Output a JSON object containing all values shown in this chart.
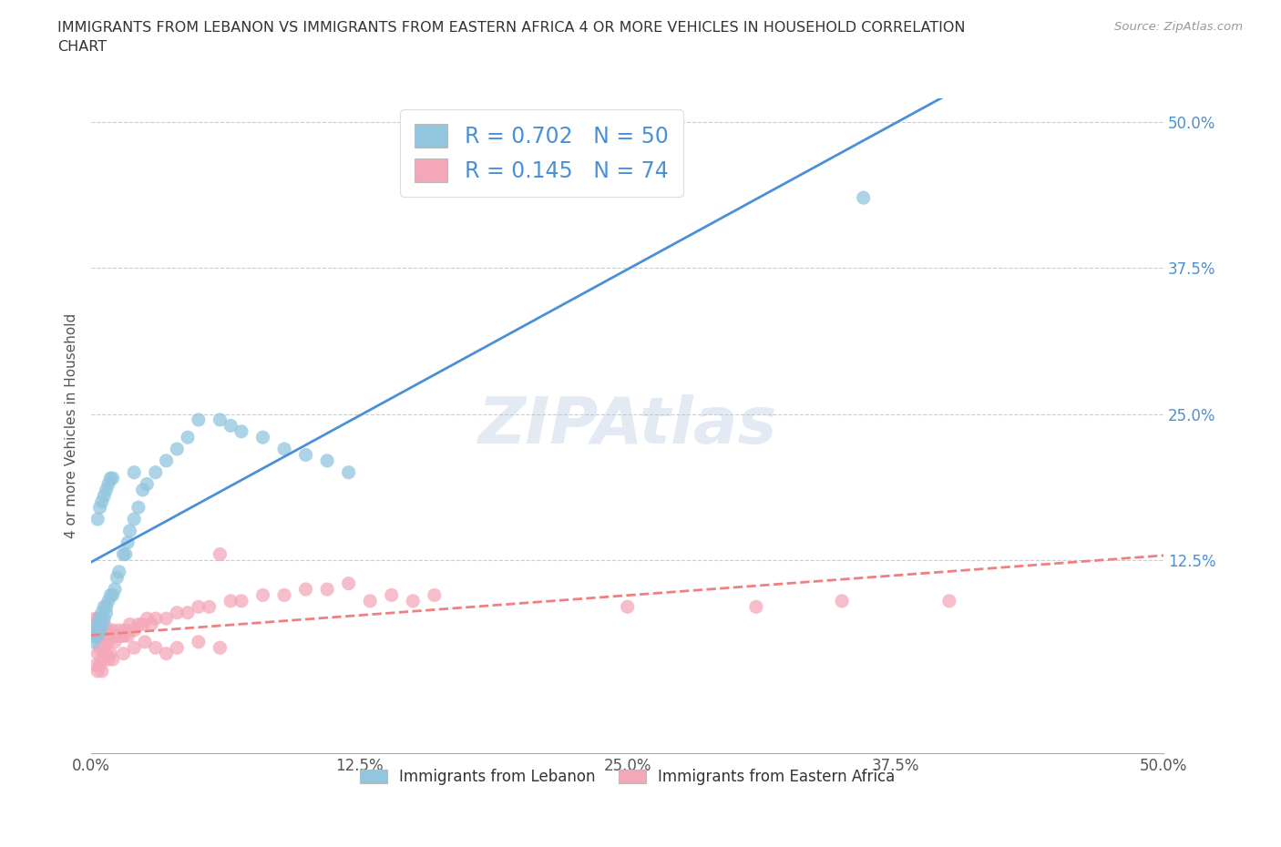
{
  "title": "IMMIGRANTS FROM LEBANON VS IMMIGRANTS FROM EASTERN AFRICA 4 OR MORE VEHICLES IN HOUSEHOLD CORRELATION\nCHART",
  "source": "Source: ZipAtlas.com",
  "ylabel": "4 or more Vehicles in Household",
  "xmin": 0.0,
  "xmax": 0.5,
  "ymin": -0.04,
  "ymax": 0.52,
  "xtick_labels": [
    "0.0%",
    "12.5%",
    "25.0%",
    "37.5%",
    "50.0%"
  ],
  "xtick_vals": [
    0.0,
    0.125,
    0.25,
    0.375,
    0.5
  ],
  "ytick_labels": [
    "12.5%",
    "25.0%",
    "37.5%",
    "50.0%"
  ],
  "ytick_vals": [
    0.125,
    0.25,
    0.375,
    0.5
  ],
  "watermark": "ZIPAtlas",
  "lebanon_color": "#92C5DE",
  "eastern_africa_color": "#F4A7B9",
  "lebanon_line_color": "#4A90D9",
  "eastern_africa_line_color": "#F08080",
  "R_lebanon": 0.702,
  "N_lebanon": 50,
  "R_eastern_africa": 0.145,
  "N_eastern_africa": 74,
  "legend_label_lebanon": "Immigrants from Lebanon",
  "legend_label_eastern_africa": "Immigrants from Eastern Africa",
  "lebanon_x": [
    0.001,
    0.002,
    0.002,
    0.003,
    0.003,
    0.004,
    0.004,
    0.005,
    0.005,
    0.006,
    0.006,
    0.007,
    0.007,
    0.008,
    0.009,
    0.01,
    0.011,
    0.012,
    0.013,
    0.015,
    0.016,
    0.017,
    0.018,
    0.02,
    0.022,
    0.024,
    0.026,
    0.03,
    0.035,
    0.04,
    0.045,
    0.05,
    0.06,
    0.065,
    0.07,
    0.08,
    0.09,
    0.1,
    0.11,
    0.12,
    0.003,
    0.004,
    0.005,
    0.006,
    0.007,
    0.008,
    0.009,
    0.01,
    0.02,
    0.36
  ],
  "lebanon_y": [
    0.055,
    0.06,
    0.065,
    0.06,
    0.07,
    0.065,
    0.075,
    0.07,
    0.08,
    0.075,
    0.085,
    0.08,
    0.085,
    0.09,
    0.095,
    0.095,
    0.1,
    0.11,
    0.115,
    0.13,
    0.13,
    0.14,
    0.15,
    0.16,
    0.17,
    0.185,
    0.19,
    0.2,
    0.21,
    0.22,
    0.23,
    0.245,
    0.245,
    0.24,
    0.235,
    0.23,
    0.22,
    0.215,
    0.21,
    0.2,
    0.16,
    0.17,
    0.175,
    0.18,
    0.185,
    0.19,
    0.195,
    0.195,
    0.2,
    0.435
  ],
  "eastern_africa_x": [
    0.001,
    0.001,
    0.002,
    0.002,
    0.003,
    0.003,
    0.004,
    0.004,
    0.005,
    0.005,
    0.006,
    0.006,
    0.007,
    0.007,
    0.008,
    0.008,
    0.009,
    0.01,
    0.01,
    0.011,
    0.012,
    0.013,
    0.014,
    0.015,
    0.016,
    0.017,
    0.018,
    0.02,
    0.022,
    0.024,
    0.026,
    0.028,
    0.03,
    0.035,
    0.04,
    0.045,
    0.05,
    0.055,
    0.06,
    0.065,
    0.07,
    0.08,
    0.09,
    0.1,
    0.11,
    0.12,
    0.13,
    0.14,
    0.15,
    0.16,
    0.003,
    0.004,
    0.005,
    0.006,
    0.007,
    0.008,
    0.009,
    0.01,
    0.015,
    0.02,
    0.025,
    0.03,
    0.035,
    0.04,
    0.05,
    0.06,
    0.25,
    0.31,
    0.35,
    0.4,
    0.002,
    0.003,
    0.004,
    0.005
  ],
  "eastern_africa_y": [
    0.06,
    0.07,
    0.065,
    0.075,
    0.06,
    0.075,
    0.065,
    0.075,
    0.06,
    0.07,
    0.06,
    0.07,
    0.065,
    0.06,
    0.065,
    0.055,
    0.06,
    0.06,
    0.065,
    0.055,
    0.06,
    0.065,
    0.06,
    0.06,
    0.065,
    0.06,
    0.07,
    0.065,
    0.07,
    0.07,
    0.075,
    0.07,
    0.075,
    0.075,
    0.08,
    0.08,
    0.085,
    0.085,
    0.13,
    0.09,
    0.09,
    0.095,
    0.095,
    0.1,
    0.1,
    0.105,
    0.09,
    0.095,
    0.09,
    0.095,
    0.045,
    0.05,
    0.04,
    0.05,
    0.045,
    0.04,
    0.045,
    0.04,
    0.045,
    0.05,
    0.055,
    0.05,
    0.045,
    0.05,
    0.055,
    0.05,
    0.085,
    0.085,
    0.09,
    0.09,
    0.035,
    0.03,
    0.035,
    0.03
  ]
}
